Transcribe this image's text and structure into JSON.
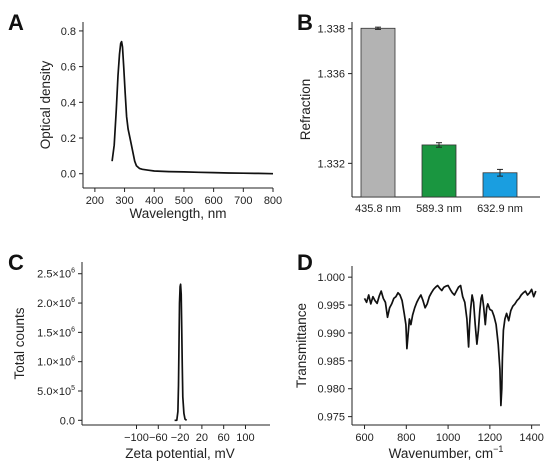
{
  "chart_data": [
    {
      "panel": "A",
      "type": "line",
      "xlabel": "Wavelength, nm",
      "ylabel": "Optical density",
      "xlim": [
        160,
        800
      ],
      "ylim": [
        -0.08,
        0.85
      ],
      "xticks": [
        "200",
        "300",
        "400",
        "500",
        "600",
        "700",
        "800"
      ],
      "yticks": [
        "0.0",
        "0.2",
        "0.4",
        "0.6",
        "0.8"
      ],
      "tick_values_x": [
        200,
        300,
        400,
        500,
        600,
        700,
        800
      ],
      "tick_values_y": [
        0.0,
        0.2,
        0.4,
        0.6,
        0.8
      ],
      "grid": false,
      "series": [
        {
          "x": [
            258,
            265,
            272,
            278,
            283,
            287,
            290,
            293,
            297,
            302,
            307,
            312,
            317,
            322,
            328,
            334,
            340,
            350,
            360,
            380,
            400,
            450,
            500,
            550,
            600,
            650,
            700,
            750,
            800
          ],
          "y": [
            0.07,
            0.16,
            0.36,
            0.55,
            0.67,
            0.73,
            0.74,
            0.71,
            0.6,
            0.45,
            0.32,
            0.25,
            0.21,
            0.17,
            0.12,
            0.07,
            0.045,
            0.03,
            0.025,
            0.02,
            0.015,
            0.012,
            0.01,
            0.008,
            0.006,
            0.004,
            0.003,
            0.002,
            0.0
          ]
        }
      ]
    },
    {
      "panel": "B",
      "type": "bar",
      "ylabel": "Refraction",
      "ylim": [
        1.3305,
        1.3383
      ],
      "yticks": [
        "1.332",
        "1.336",
        "1.338"
      ],
      "tick_values_y": [
        1.332,
        1.336,
        1.338
      ],
      "categories": [
        "435.8 nm",
        "589.3 nm",
        "632.9 nm"
      ],
      "values": [
        1.33802,
        1.33282,
        1.33158
      ],
      "errors": [
        5e-05,
        0.0001,
        0.00015
      ],
      "colors": [
        "#b3b3b3",
        "#1a9640",
        "#1a9ee0"
      ],
      "grid": false
    },
    {
      "panel": "C",
      "type": "line",
      "xlabel": "Zeta potential, mV",
      "ylabel": "Total counts",
      "xlim": [
        -200,
        145
      ],
      "ylim": [
        -80000,
        2700000
      ],
      "xticks": [
        "−100",
        "−60",
        "−20",
        "20",
        "60",
        "100"
      ],
      "tick_values_x": [
        -100,
        -60,
        -20,
        20,
        60,
        100
      ],
      "yticks": [
        {
          "mantissa": "0.0",
          "exp": ""
        },
        {
          "mantissa": "5.0×10",
          "exp": "5"
        },
        {
          "mantissa": "1.0×10",
          "exp": "6"
        },
        {
          "mantissa": "1.5×10",
          "exp": "6"
        },
        {
          "mantissa": "2.0×10",
          "exp": "6"
        },
        {
          "mantissa": "2.5×10",
          "exp": "6"
        }
      ],
      "tick_values_y": [
        0,
        500000,
        1000000,
        1500000,
        2000000,
        2500000
      ],
      "grid": false,
      "series": [
        {
          "x": [
            -30,
            -26,
            -24,
            -23,
            -22,
            -21,
            -20,
            -19,
            -18,
            -17,
            -16,
            -15,
            -13,
            -11,
            -8
          ],
          "y": [
            0,
            0,
            150000,
            600000,
            1300000,
            2000000,
            2280000,
            2320000,
            2150000,
            1600000,
            900000,
            400000,
            120000,
            20000,
            0
          ]
        }
      ]
    },
    {
      "panel": "D",
      "type": "line",
      "xlabel": "Wavenumber, cm",
      "xlabel_sup": "−1",
      "ylabel": "Transmittance",
      "xlim": [
        540,
        1440
      ],
      "ylim": [
        0.9735,
        1.002
      ],
      "xticks": [
        "600",
        "800",
        "1000",
        "1200",
        "1400"
      ],
      "tick_values_x": [
        600,
        800,
        1000,
        1200,
        1400
      ],
      "yticks": [
        "0.975",
        "0.980",
        "0.985",
        "0.990",
        "0.995",
        "1.000"
      ],
      "tick_values_y": [
        0.975,
        0.98,
        0.985,
        0.99,
        0.995,
        1.0
      ],
      "grid": false,
      "series": [
        {
          "x": [
            600,
            610,
            620,
            630,
            640,
            650,
            660,
            670,
            680,
            690,
            700,
            710,
            720,
            730,
            740,
            750,
            760,
            770,
            780,
            790,
            798,
            803,
            808,
            815,
            822,
            830,
            840,
            850,
            860,
            870,
            880,
            890,
            900,
            910,
            920,
            930,
            940,
            950,
            960,
            970,
            980,
            990,
            1000,
            1010,
            1020,
            1030,
            1040,
            1050,
            1060,
            1070,
            1080,
            1090,
            1098,
            1103,
            1108,
            1115,
            1122,
            1130,
            1138,
            1145,
            1152,
            1158,
            1163,
            1170,
            1178,
            1185,
            1190,
            1200,
            1210,
            1220,
            1230,
            1240,
            1248,
            1253,
            1257,
            1260,
            1265,
            1272,
            1280,
            1290,
            1300,
            1310,
            1320,
            1330,
            1340,
            1350,
            1360,
            1370,
            1380,
            1390,
            1400,
            1410,
            1420
          ],
          "y": [
            0.9962,
            0.9955,
            0.9968,
            0.9952,
            0.9965,
            0.9958,
            0.9953,
            0.9966,
            0.9975,
            0.9962,
            0.9955,
            0.9928,
            0.9945,
            0.9952,
            0.9962,
            0.9965,
            0.9972,
            0.9968,
            0.9958,
            0.9935,
            0.9915,
            0.9872,
            0.9895,
            0.9925,
            0.9915,
            0.9932,
            0.9945,
            0.9955,
            0.9962,
            0.9968,
            0.9958,
            0.9945,
            0.9952,
            0.9965,
            0.9972,
            0.9978,
            0.9982,
            0.9985,
            0.998,
            0.9976,
            0.9982,
            0.9984,
            0.9985,
            0.9978,
            0.9972,
            0.9968,
            0.9975,
            0.9982,
            0.9985,
            0.9965,
            0.9955,
            0.9925,
            0.9875,
            0.9915,
            0.9942,
            0.9968,
            0.9955,
            0.9915,
            0.988,
            0.9905,
            0.994,
            0.9962,
            0.9968,
            0.9948,
            0.9915,
            0.9945,
            0.9952,
            0.9942,
            0.994,
            0.993,
            0.9915,
            0.988,
            0.9835,
            0.977,
            0.98,
            0.9855,
            0.9905,
            0.9925,
            0.9935,
            0.9922,
            0.994,
            0.9948,
            0.9952,
            0.9958,
            0.9962,
            0.9968,
            0.9972,
            0.9975,
            0.9968,
            0.9972,
            0.9978,
            0.9965,
            0.9975
          ]
        }
      ]
    }
  ]
}
